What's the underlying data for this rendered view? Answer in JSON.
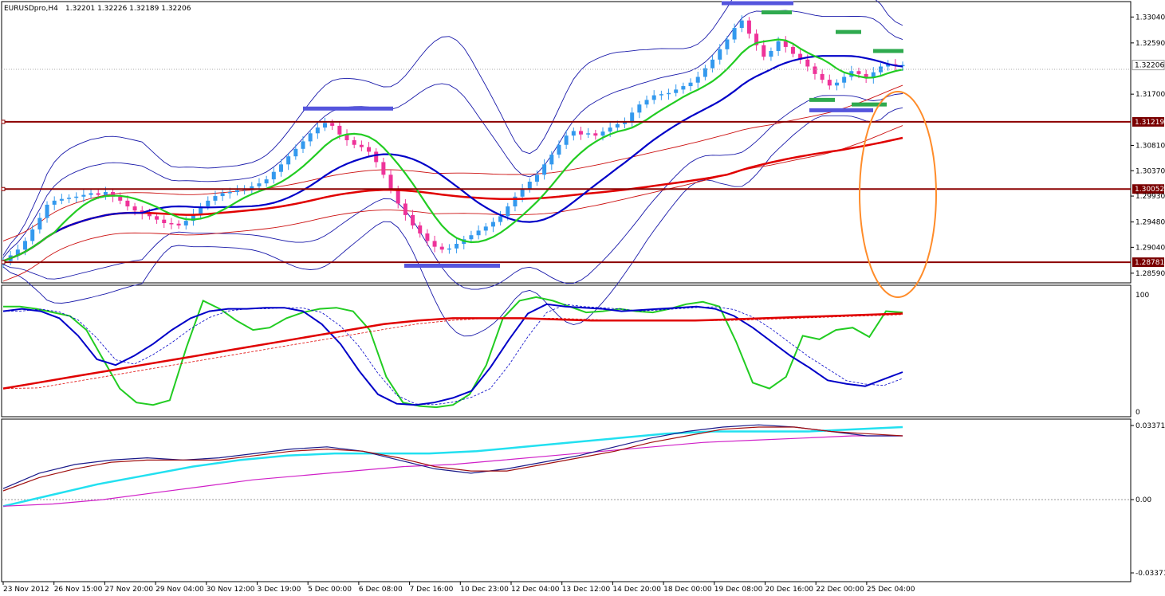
{
  "header": {
    "symbol": "EURUSDpro,H4",
    "quote": "1.32201 1.32226 1.32189 1.32206"
  },
  "chart_data": {
    "type": "candlestick",
    "symbol": "EURUSDpro",
    "timeframe": "H4",
    "ohlc": {
      "open": 1.32201,
      "high": 1.32226,
      "low": 1.32189,
      "close": 1.32206
    },
    "price_axis": {
      "ylim": [
        1.2845,
        1.3328
      ],
      "ticks": [
        "1.33040",
        "1.32590",
        "1.32206",
        "1.31700",
        "1.31219",
        "1.30810",
        "1.30370",
        "1.30052",
        "1.29930",
        "1.29480",
        "1.29040",
        "1.28781",
        "1.28590"
      ],
      "current_price": "1.32206"
    },
    "x_labels": [
      "23 Nov 2012",
      "26 Nov 15:00",
      "27 Nov 20:00",
      "29 Nov 04:00",
      "30 Nov 12:00",
      "3 Dec 19:00",
      "5 Dec 00:00",
      "6 Dec 08:00",
      "7 Dec 16:00",
      "10 Dec 23:00",
      "12 Dec 04:00",
      "13 Dec 12:00",
      "14 Dec 20:00",
      "18 Dec 00:00",
      "19 Dec 08:00",
      "20 Dec 16:00",
      "22 Dec 00:00",
      "25 Dec 04:00"
    ],
    "horizontal_levels": [
      {
        "value": 1.31219,
        "label": "1.31219",
        "color": "#8b0000"
      },
      {
        "value": 1.30052,
        "label": "1.30052",
        "color": "#8b0000"
      },
      {
        "value": 1.28781,
        "label": "1.28781",
        "color": "#8b0000"
      }
    ],
    "candles_close": [
      1.288,
      1.289,
      1.29,
      1.2915,
      1.2935,
      1.2955,
      1.2978,
      1.2985,
      1.2988,
      1.299,
      1.2992,
      1.2995,
      1.2998,
      1.2995,
      1.3,
      1.2992,
      1.2985,
      1.2975,
      1.2968,
      1.2962,
      1.2958,
      1.2952,
      1.2946,
      1.2945,
      1.2942,
      1.295,
      1.2962,
      1.2975,
      1.2985,
      1.2993,
      1.2998,
      1.3,
      1.3003,
      1.3006,
      1.301,
      1.3015,
      1.3022,
      1.3035,
      1.3048,
      1.3062,
      1.3075,
      1.3088,
      1.3102,
      1.3112,
      1.312,
      1.3115,
      1.31,
      1.309,
      1.3082,
      1.3078,
      1.307,
      1.3052,
      1.303,
      1.3005,
      1.298,
      1.296,
      1.2942,
      1.2928,
      1.2915,
      1.2905,
      1.29,
      1.2902,
      1.291,
      1.2918,
      1.2925,
      1.2933,
      1.294,
      1.2948,
      1.2958,
      1.2975,
      1.2992,
      1.3005,
      1.3018,
      1.303,
      1.3048,
      1.3065,
      1.3082,
      1.3098,
      1.3106,
      1.31,
      1.3102,
      1.3098,
      1.3105,
      1.3112,
      1.3118,
      1.3122,
      1.3138,
      1.3152,
      1.316,
      1.3168,
      1.317,
      1.3172,
      1.3178,
      1.3184,
      1.319,
      1.32,
      1.3215,
      1.323,
      1.3248,
      1.3265,
      1.3285,
      1.3298,
      1.3275,
      1.3255,
      1.3235,
      1.3245,
      1.3262,
      1.3252,
      1.324,
      1.323,
      1.3218,
      1.3205,
      1.3195,
      1.3185,
      1.319,
      1.32,
      1.321,
      1.3205,
      1.3198,
      1.3208,
      1.3218,
      1.3222,
      1.322,
      1.32206
    ],
    "price_lines": [
      {
        "name": "green",
        "color": "#22cc22",
        "width": 2.2
      },
      {
        "name": "blue",
        "color": "#0000c8",
        "width": 2.2
      },
      {
        "name": "red",
        "color": "#e00000",
        "width": 2.5
      }
    ],
    "annotation_bars": [
      {
        "color": "#5555dd",
        "price": 1.3328
      },
      {
        "color": "#2faa4f",
        "price": 1.3312
      },
      {
        "color": "#5555dd",
        "price": 1.3145
      },
      {
        "color": "#5555dd",
        "price": 1.2872
      },
      {
        "color": "#2faa4f",
        "price": 1.3278
      },
      {
        "color": "#2faa4f",
        "price": 1.3245
      },
      {
        "color": "#2faa4f",
        "price": 1.316
      },
      {
        "color": "#2faa4f",
        "price": 1.3152
      },
      {
        "color": "#5555dd",
        "price": 1.3142
      }
    ],
    "annotation_ellipse": {
      "color": "#ff8c2a"
    },
    "oscillator": {
      "ylim": [
        0,
        100
      ],
      "ticks": [
        "100",
        "0"
      ],
      "series": [
        {
          "name": "green",
          "color": "#22cc22",
          "values": [
            90,
            90,
            88,
            85,
            82,
            70,
            45,
            20,
            8,
            6,
            10,
            55,
            95,
            88,
            78,
            70,
            72,
            80,
            85,
            88,
            89,
            86,
            70,
            30,
            8,
            5,
            4,
            6,
            15,
            40,
            80,
            95,
            98,
            95,
            90,
            85,
            86,
            88,
            86,
            85,
            88,
            92,
            94,
            90,
            60,
            25,
            20,
            30,
            65,
            62,
            70,
            72,
            64,
            86,
            85
          ]
        },
        {
          "name": "blue",
          "color": "#0000c8",
          "values": [
            86,
            88,
            86,
            80,
            65,
            45,
            40,
            48,
            58,
            70,
            80,
            86,
            88,
            88,
            89,
            89,
            86,
            75,
            58,
            35,
            15,
            7,
            6,
            8,
            12,
            18,
            38,
            62,
            84,
            92,
            90,
            89,
            88,
            86,
            87,
            88,
            89,
            90,
            88,
            82,
            72,
            60,
            48,
            38,
            27,
            24,
            22,
            28,
            34
          ]
        },
        {
          "name": "red",
          "color": "#e00000",
          "values": [
            20,
            25,
            30,
            35,
            40,
            45,
            50,
            55,
            60,
            65,
            70,
            75,
            78,
            80,
            80,
            80,
            79,
            78,
            78,
            78,
            78,
            79,
            80,
            81,
            82,
            83,
            84
          ]
        }
      ]
    },
    "macd": {
      "ticks": [
        "0.033718",
        "0.00",
        "-0.033718"
      ],
      "series": [
        {
          "name": "cyan",
          "color": "#22e0f0",
          "values": [
            -0.003,
            0.002,
            0.007,
            0.011,
            0.015,
            0.018,
            0.02,
            0.021,
            0.021,
            0.021,
            0.022,
            0.024,
            0.026,
            0.028,
            0.03,
            0.031,
            0.031,
            0.031,
            0.032,
            0.033
          ]
        },
        {
          "name": "magenta",
          "color": "#d020c8",
          "values": [
            -0.003,
            -0.002,
            0.0,
            0.003,
            0.006,
            0.009,
            0.011,
            0.013,
            0.015,
            0.016,
            0.018,
            0.02,
            0.022,
            0.024,
            0.026,
            0.027,
            0.028,
            0.029,
            0.029
          ]
        },
        {
          "name": "navy",
          "color": "#1a1a8a",
          "values": [
            0.005,
            0.012,
            0.016,
            0.018,
            0.019,
            0.018,
            0.019,
            0.021,
            0.023,
            0.024,
            0.022,
            0.018,
            0.014,
            0.012,
            0.014,
            0.017,
            0.02,
            0.024,
            0.028,
            0.031,
            0.033,
            0.034,
            0.033,
            0.031,
            0.029,
            0.029
          ]
        },
        {
          "name": "darkred",
          "color": "#a01010",
          "values": [
            0.004,
            0.01,
            0.014,
            0.017,
            0.018,
            0.018,
            0.018,
            0.02,
            0.022,
            0.023,
            0.022,
            0.019,
            0.015,
            0.013,
            0.013,
            0.016,
            0.019,
            0.022,
            0.026,
            0.029,
            0.032,
            0.033,
            0.033,
            0.031,
            0.03,
            0.029
          ]
        }
      ]
    }
  }
}
